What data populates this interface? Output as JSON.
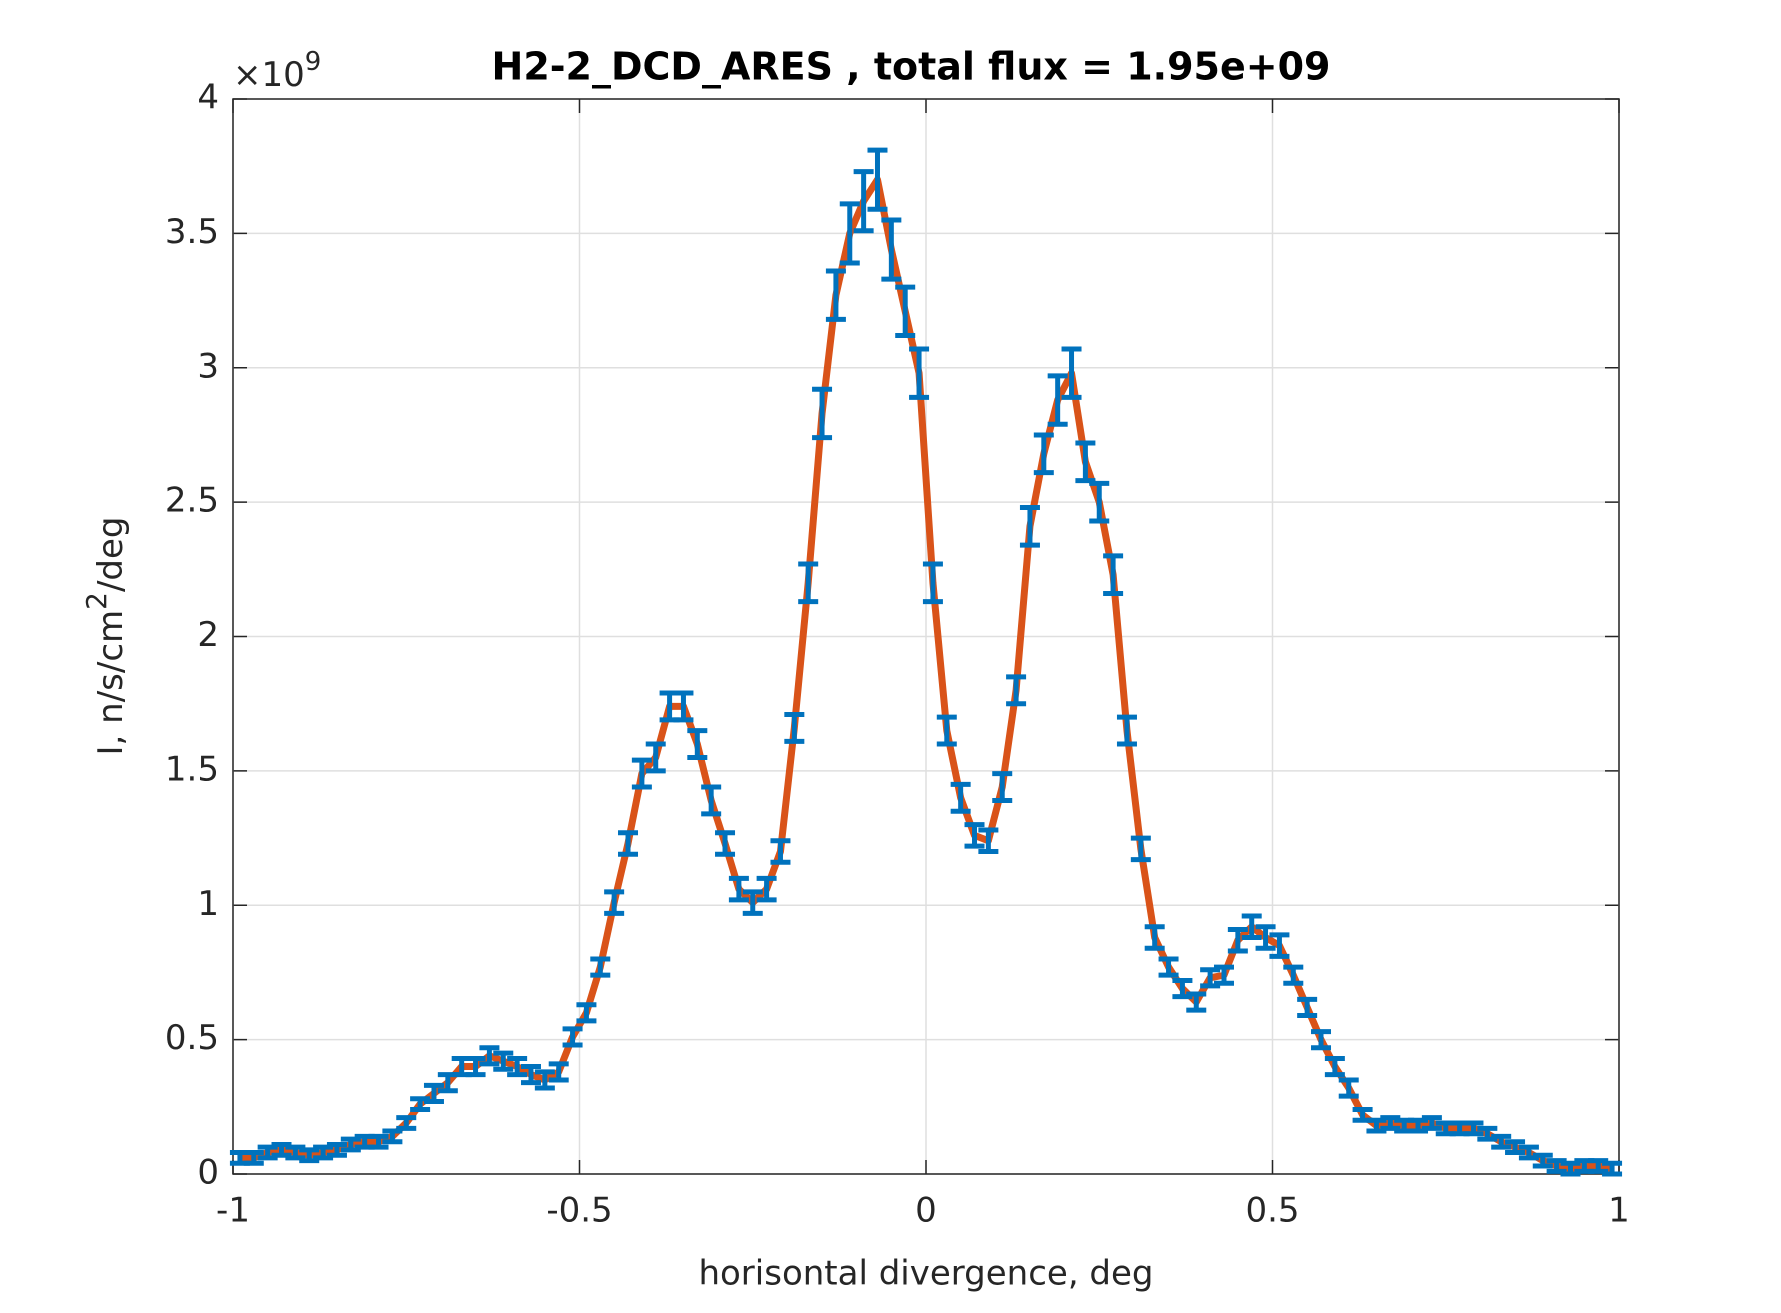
{
  "chart_data": {
    "type": "errorbar",
    "title": "H2-2_DCD_ARES , total flux =  1.95e+09",
    "xlabel": "horisontal divergence, deg",
    "ylabel": [
      "I, n/s/cm",
      "2",
      "/deg"
    ],
    "y_multiplier": [
      "×10",
      "9"
    ],
    "x": [
      -0.99,
      -0.97,
      -0.95,
      -0.93,
      -0.91,
      -0.89,
      -0.87,
      -0.85,
      -0.83,
      -0.81,
      -0.79,
      -0.77,
      -0.75,
      -0.73,
      -0.71,
      -0.69,
      -0.67,
      -0.65,
      -0.63,
      -0.61,
      -0.59,
      -0.57,
      -0.55,
      -0.53,
      -0.51,
      -0.49,
      -0.47,
      -0.45,
      -0.43,
      -0.41,
      -0.39,
      -0.37,
      -0.35,
      -0.33,
      -0.31,
      -0.29,
      -0.27,
      -0.25,
      -0.23,
      -0.21,
      -0.19,
      -0.17,
      -0.15,
      -0.13,
      -0.11,
      -0.09,
      -0.07,
      -0.05,
      -0.03,
      -0.01,
      0.01,
      0.03,
      0.05,
      0.07,
      0.09,
      0.11,
      0.13,
      0.15,
      0.17,
      0.19,
      0.21,
      0.23,
      0.25,
      0.27,
      0.29,
      0.31,
      0.33,
      0.35,
      0.37,
      0.39,
      0.41,
      0.43,
      0.45,
      0.47,
      0.49,
      0.51,
      0.53,
      0.55,
      0.57,
      0.59,
      0.61,
      0.63,
      0.65,
      0.67,
      0.69,
      0.71,
      0.73,
      0.75,
      0.77,
      0.79,
      0.81,
      0.83,
      0.85,
      0.87,
      0.89,
      0.91,
      0.93,
      0.95,
      0.97,
      0.99
    ],
    "values": [
      0.06,
      0.06,
      0.08,
      0.09,
      0.08,
      0.07,
      0.08,
      0.09,
      0.11,
      0.12,
      0.12,
      0.14,
      0.19,
      0.26,
      0.3,
      0.34,
      0.4,
      0.4,
      0.44,
      0.42,
      0.4,
      0.37,
      0.35,
      0.38,
      0.51,
      0.6,
      0.77,
      1.01,
      1.23,
      1.49,
      1.55,
      1.74,
      1.74,
      1.6,
      1.39,
      1.23,
      1.06,
      1.01,
      1.06,
      1.2,
      1.66,
      2.2,
      2.83,
      3.27,
      3.5,
      3.62,
      3.7,
      3.44,
      3.21,
      2.98,
      2.2,
      1.65,
      1.4,
      1.26,
      1.24,
      1.44,
      1.8,
      2.41,
      2.68,
      2.88,
      2.98,
      2.65,
      2.5,
      2.23,
      1.65,
      1.21,
      0.88,
      0.77,
      0.69,
      0.64,
      0.73,
      0.74,
      0.87,
      0.92,
      0.88,
      0.85,
      0.74,
      0.62,
      0.5,
      0.4,
      0.32,
      0.22,
      0.18,
      0.19,
      0.18,
      0.18,
      0.19,
      0.17,
      0.17,
      0.17,
      0.15,
      0.12,
      0.1,
      0.08,
      0.05,
      0.03,
      0.02,
      0.03,
      0.03,
      0.02
    ],
    "errors": [
      0.02,
      0.02,
      0.02,
      0.02,
      0.02,
      0.02,
      0.02,
      0.02,
      0.02,
      0.02,
      0.02,
      0.02,
      0.02,
      0.02,
      0.03,
      0.03,
      0.03,
      0.03,
      0.03,
      0.03,
      0.03,
      0.03,
      0.03,
      0.03,
      0.03,
      0.03,
      0.03,
      0.04,
      0.04,
      0.05,
      0.05,
      0.05,
      0.05,
      0.05,
      0.05,
      0.04,
      0.04,
      0.04,
      0.04,
      0.04,
      0.05,
      0.07,
      0.09,
      0.09,
      0.11,
      0.11,
      0.11,
      0.11,
      0.09,
      0.09,
      0.07,
      0.05,
      0.05,
      0.04,
      0.04,
      0.05,
      0.05,
      0.07,
      0.07,
      0.09,
      0.09,
      0.07,
      0.07,
      0.07,
      0.05,
      0.04,
      0.04,
      0.03,
      0.03,
      0.03,
      0.03,
      0.03,
      0.04,
      0.04,
      0.04,
      0.04,
      0.03,
      0.03,
      0.03,
      0.03,
      0.03,
      0.02,
      0.02,
      0.02,
      0.02,
      0.02,
      0.02,
      0.02,
      0.02,
      0.02,
      0.02,
      0.02,
      0.02,
      0.02,
      0.02,
      0.02,
      0.02,
      0.02,
      0.02,
      0.02
    ],
    "line_color": "#d95319",
    "marker_color": "#0072bd",
    "xlim": [
      -1,
      1
    ],
    "xticks": [
      -1,
      -0.5,
      0,
      0.5,
      1
    ],
    "ylim": [
      0,
      4
    ],
    "yticks": [
      0,
      0.5,
      1,
      1.5,
      2,
      2.5,
      3,
      3.5,
      4
    ],
    "grid": true
  }
}
